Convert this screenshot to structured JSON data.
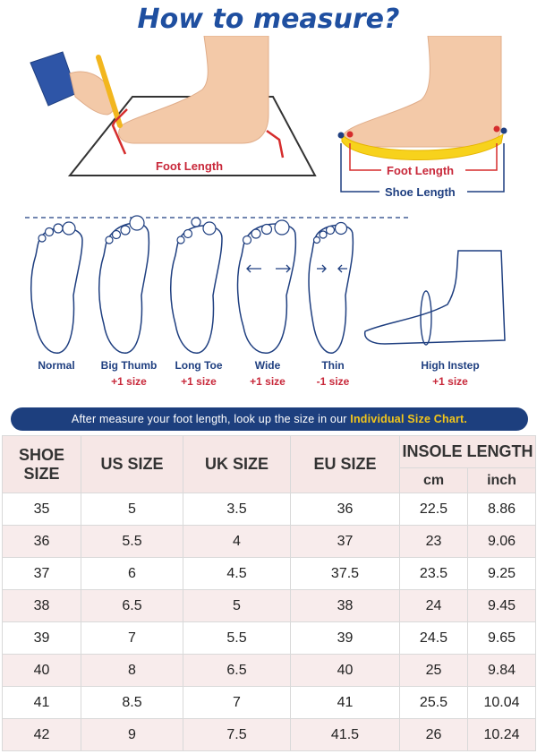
{
  "title": "How to measure?",
  "diagram": {
    "foot_length": "Foot Length",
    "shoe_diagram": {
      "foot_length": "Foot Length",
      "shoe_length": "Shoe Length"
    },
    "foot_types": [
      {
        "name": "Normal",
        "adjust": ""
      },
      {
        "name": "Big Thumb",
        "adjust": "+1 size"
      },
      {
        "name": "Long Toe",
        "adjust": "+1 size"
      },
      {
        "name": "Wide",
        "adjust": "+1 size"
      },
      {
        "name": "Thin",
        "adjust": "-1 size"
      },
      {
        "name": "High Instep",
        "adjust": "+1 size"
      }
    ]
  },
  "banner": {
    "text": "After measure your foot length, look up the size in our ",
    "highlight": "Individual Size Chart."
  },
  "table": {
    "headers": {
      "shoe_size": "SHOE SIZE",
      "us": "US SIZE",
      "uk": "UK SIZE",
      "eu": "EU SIZE",
      "insole": "INSOLE LENGTH",
      "cm": "cm",
      "inch": "inch"
    },
    "rows": [
      {
        "shoe": "35",
        "us": "5",
        "uk": "3.5",
        "eu": "36",
        "cm": "22.5",
        "inch": "8.86"
      },
      {
        "shoe": "36",
        "us": "5.5",
        "uk": "4",
        "eu": "37",
        "cm": "23",
        "inch": "9.06"
      },
      {
        "shoe": "37",
        "us": "6",
        "uk": "4.5",
        "eu": "37.5",
        "cm": "23.5",
        "inch": "9.25"
      },
      {
        "shoe": "38",
        "us": "6.5",
        "uk": "5",
        "eu": "38",
        "cm": "24",
        "inch": "9.45"
      },
      {
        "shoe": "39",
        "us": "7",
        "uk": "5.5",
        "eu": "39",
        "cm": "24.5",
        "inch": "9.65"
      },
      {
        "shoe": "40",
        "us": "8",
        "uk": "6.5",
        "eu": "40",
        "cm": "25",
        "inch": "9.84"
      },
      {
        "shoe": "41",
        "us": "8.5",
        "uk": "7",
        "eu": "41",
        "cm": "25.5",
        "inch": "10.04"
      },
      {
        "shoe": "42",
        "us": "9",
        "uk": "7.5",
        "eu": "41.5",
        "cm": "26",
        "inch": "10.24"
      }
    ]
  }
}
